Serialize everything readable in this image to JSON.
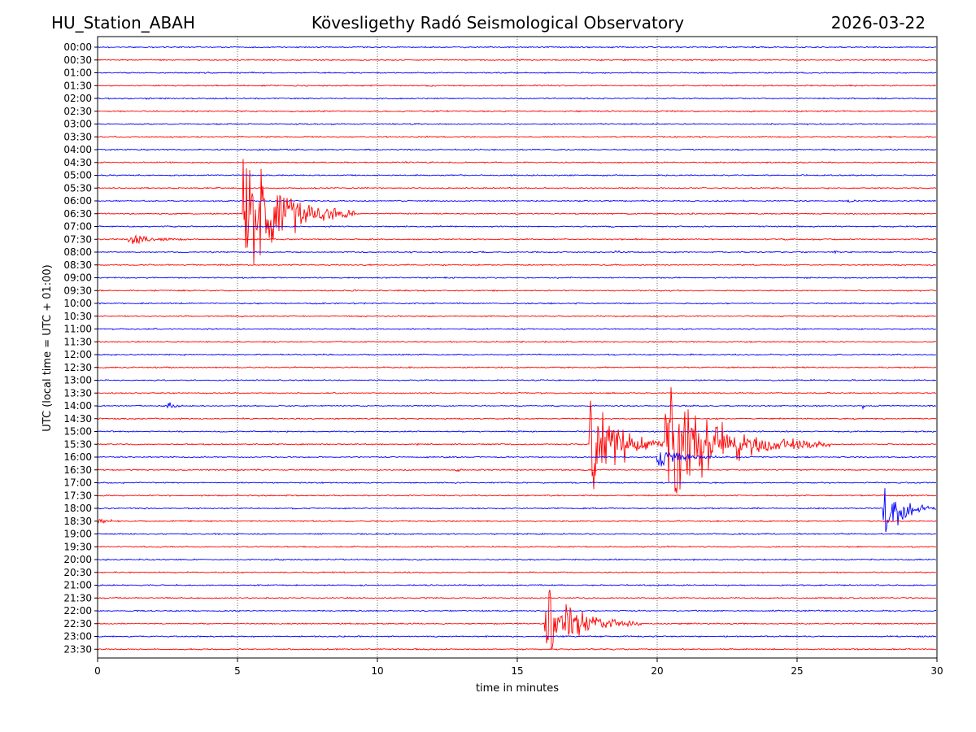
{
  "header": {
    "station": "HU_Station_ABAH",
    "observatory": "Kövesligethy Radó Seismological Observatory",
    "date": "2026-03-22"
  },
  "chart_data": {
    "type": "line",
    "title": "Kövesligethy Radó Seismological Observatory",
    "xlabel": "time in minutes",
    "ylabel": "UTC (local time = UTC + 01:00)",
    "xlim": [
      0,
      30
    ],
    "xticks": [
      0,
      5,
      10,
      15,
      20,
      25,
      30
    ],
    "xtick_labels": [
      "0",
      "5",
      "10",
      "15",
      "20",
      "25",
      "30"
    ],
    "grid": "vertical dotted at 5-minute intervals",
    "colors": [
      "#0000ff",
      "#ff0000"
    ],
    "rows": [
      "00:00",
      "00:30",
      "01:00",
      "01:30",
      "02:00",
      "02:30",
      "03:00",
      "03:30",
      "04:00",
      "04:30",
      "05:00",
      "05:30",
      "06:00",
      "06:30",
      "07:00",
      "07:30",
      "08:00",
      "08:30",
      "09:00",
      "09:30",
      "10:00",
      "10:30",
      "11:00",
      "11:30",
      "12:00",
      "12:30",
      "13:00",
      "13:30",
      "14:00",
      "14:30",
      "15:00",
      "15:30",
      "16:00",
      "16:30",
      "17:00",
      "17:30",
      "18:00",
      "18:30",
      "19:00",
      "19:30",
      "20:00",
      "20:30",
      "21:00",
      "21:30",
      "22:00",
      "22:30",
      "23:00",
      "23:30"
    ],
    "events": [
      {
        "row": "06:30",
        "start_min": 5.2,
        "peak_amplitude_rows": 7.5,
        "duration_min": 4.0
      },
      {
        "row": "07:30",
        "start_min": 1.1,
        "peak_amplitude_rows": 0.6,
        "duration_min": 3.0
      },
      {
        "row": "15:30",
        "start_min": 17.6,
        "peak_amplitude_rows": 5.5,
        "duration_min": 3.0
      },
      {
        "row": "15:30",
        "start_min": 20.3,
        "peak_amplitude_rows": 6.0,
        "duration_min": 6.0
      },
      {
        "row": "16:00",
        "start_min": 20.0,
        "peak_amplitude_rows": 1.0,
        "duration_min": 3.0
      },
      {
        "row": "18:00",
        "start_min": 28.1,
        "peak_amplitude_rows": 3.5,
        "duration_min": 1.9
      },
      {
        "row": "22:30",
        "start_min": 16.0,
        "peak_amplitude_rows": 3.8,
        "duration_min": 3.5
      },
      {
        "row": "14:00",
        "start_min": 2.5,
        "peak_amplitude_rows": 0.5,
        "duration_min": 0.6
      },
      {
        "row": "16:30",
        "start_min": 12.8,
        "peak_amplitude_rows": 0.5,
        "duration_min": 0.4
      },
      {
        "row": "18:30",
        "start_min": 0.0,
        "peak_amplitude_rows": 0.4,
        "duration_min": 1.0
      },
      {
        "row": "06:00",
        "start_min": 26.8,
        "peak_amplitude_rows": 0.3,
        "duration_min": 0.8
      },
      {
        "row": "14:00",
        "start_min": 27.3,
        "peak_amplitude_rows": 0.3,
        "duration_min": 0.8
      },
      {
        "row": "08:00",
        "start_min": 18.5,
        "peak_amplitude_rows": 0.25,
        "duration_min": 0.7
      },
      {
        "row": "08:00",
        "start_min": 26.3,
        "peak_amplitude_rows": 0.25,
        "duration_min": 0.6
      },
      {
        "row": "01:30",
        "start_min": 18.7,
        "peak_amplitude_rows": 0.3,
        "duration_min": 0.2
      }
    ]
  }
}
